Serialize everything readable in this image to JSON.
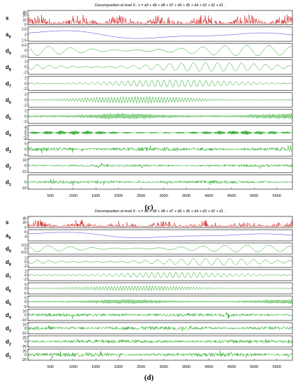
{
  "chart_data": [
    {
      "type": "line",
      "caption": "(c)",
      "title": "Decomposition at level 9 : s = a9 + d9 + d8 + d7 + d6 + d5 + d4 + d3 + d2 + d1 .",
      "x_ticks": [
        500,
        1000,
        1500,
        2000,
        2500,
        3000,
        3500,
        4000,
        4500,
        5000,
        5500
      ],
      "xlim": [
        1,
        5844
      ],
      "panels": [
        {
          "name": "s",
          "ylim": [
            0,
            30
          ],
          "yticks": [
            "30",
            "20",
            "10",
            "0"
          ],
          "color": "#d01818",
          "kind": "signal",
          "amp": 9,
          "base": 2
        },
        {
          "name": "a9",
          "ylim": [
            1.4,
            2.7
          ],
          "yticks": [
            "2.5",
            "2",
            "1.5"
          ],
          "color": "#3030d0",
          "kind": "approx",
          "amp": 0.4,
          "base": 2.0
        },
        {
          "name": "d9",
          "ylim": [
            -0.6,
            0.6
          ],
          "yticks": [
            "0.5",
            "0",
            "-0.5"
          ],
          "color": "#10a010",
          "kind": "slow",
          "amp": 0.45,
          "cycles": 12
        },
        {
          "name": "d8",
          "ylim": [
            -2.6,
            2.6
          ],
          "yticks": [
            "2",
            "0",
            "-2"
          ],
          "color": "#10a010",
          "kind": "slow",
          "amp": 1.6,
          "cycles": 22
        },
        {
          "name": "d7",
          "ylim": [
            -2.6,
            2.6
          ],
          "yticks": [
            "2",
            "0",
            "-2"
          ],
          "color": "#10a010",
          "kind": "mid",
          "amp": 1.3,
          "cycles": 44
        },
        {
          "name": "d6",
          "ylim": [
            -2.6,
            2.6
          ],
          "yticks": [
            "2",
            "0",
            "-2"
          ],
          "color": "#10a010",
          "kind": "mid",
          "amp": 1.2,
          "cycles": 90
        },
        {
          "name": "d5",
          "ylim": [
            -2.6,
            2.6
          ],
          "yticks": [
            "2",
            "0",
            "-2"
          ],
          "color": "#10a010",
          "kind": "fast",
          "amp": 1.0,
          "cycles": 180
        },
        {
          "name": "d4",
          "ylim": [
            -4.5,
            4.5
          ],
          "yticks": [
            "4",
            "2",
            "0",
            "-2",
            "-4"
          ],
          "color": "#10a010",
          "kind": "fast",
          "amp": 1.2,
          "cycles": 360
        },
        {
          "name": "d3",
          "ylim": [
            -6,
            6
          ],
          "yticks": [
            "5",
            "0",
            "-5"
          ],
          "color": "#10a010",
          "kind": "noise",
          "amp": 1.6
        },
        {
          "name": "d2",
          "ylim": [
            -12,
            12
          ],
          "yticks": [
            "10",
            "0",
            "-10"
          ],
          "color": "#10a010",
          "kind": "noise",
          "amp": 2.2
        },
        {
          "name": "d1",
          "ylim": [
            -12,
            12
          ],
          "yticks": [
            "0",
            "-10"
          ],
          "color": "#10a010",
          "kind": "noise",
          "amp": 2.5
        }
      ]
    },
    {
      "type": "line",
      "caption": "(d)",
      "title": "Decomposition at level 9 : s = a9 + d9 + d8 + d7 + d6 + d5 + d4 + d3 + d2 + d1 .",
      "x_ticks": [
        500,
        1000,
        1500,
        2000,
        2500,
        3000,
        3500,
        4000,
        4500,
        5000,
        5500
      ],
      "xlim": [
        1,
        5844
      ],
      "panels": [
        {
          "name": "s",
          "ylim": [
            0,
            45
          ],
          "yticks": [
            "40",
            "20",
            "0"
          ],
          "color": "#d01818",
          "kind": "signal",
          "amp": 12,
          "base": 4
        },
        {
          "name": "a9",
          "ylim": [
            2,
            7
          ],
          "yticks": [
            "6",
            "4"
          ],
          "color": "#3030d0",
          "kind": "approx",
          "amp": 1.4,
          "base": 4.6
        },
        {
          "name": "d9",
          "ylim": [
            -0.8,
            0.8
          ],
          "yticks": [
            "0.5",
            "0",
            "-0.5"
          ],
          "color": "#10a010",
          "kind": "slow",
          "amp": 0.5,
          "cycles": 12
        },
        {
          "name": "d8",
          "ylim": [
            -2.6,
            2.6
          ],
          "yticks": [
            "2",
            "0",
            "-2"
          ],
          "color": "#10a010",
          "kind": "slow",
          "amp": 1.5,
          "cycles": 22
        },
        {
          "name": "d7",
          "ylim": [
            -2.6,
            2.6
          ],
          "yticks": [
            "2",
            "0",
            "-2"
          ],
          "color": "#10a010",
          "kind": "mid",
          "amp": 1.3,
          "cycles": 44
        },
        {
          "name": "d6",
          "ylim": [
            -5.5,
            5.5
          ],
          "yticks": [
            "5",
            "0",
            "-5"
          ],
          "color": "#10a010",
          "kind": "mid",
          "amp": 2.4,
          "cycles": 90
        },
        {
          "name": "d5",
          "ylim": [
            -5.5,
            5.5
          ],
          "yticks": [
            "5",
            "0",
            "-5"
          ],
          "color": "#10a010",
          "kind": "fast",
          "amp": 2.0,
          "cycles": 180
        },
        {
          "name": "d4",
          "ylim": [
            -11,
            11
          ],
          "yticks": [
            "10",
            "0",
            "-10"
          ],
          "color": "#10a010",
          "kind": "noise",
          "amp": 3.2
        },
        {
          "name": "d3",
          "ylim": [
            -11,
            11
          ],
          "yticks": [
            "10",
            "0",
            "-10"
          ],
          "color": "#10a010",
          "kind": "noise",
          "amp": 3.5
        },
        {
          "name": "d2",
          "ylim": [
            -22,
            22
          ],
          "yticks": [
            "20",
            "0",
            "-20"
          ],
          "color": "#10a010",
          "kind": "noise",
          "amp": 7
        },
        {
          "name": "d1",
          "ylim": [
            -22,
            22
          ],
          "yticks": [
            "20",
            "0",
            "-20"
          ],
          "color": "#10a010",
          "kind": "noise",
          "amp": 7.5
        }
      ]
    }
  ]
}
